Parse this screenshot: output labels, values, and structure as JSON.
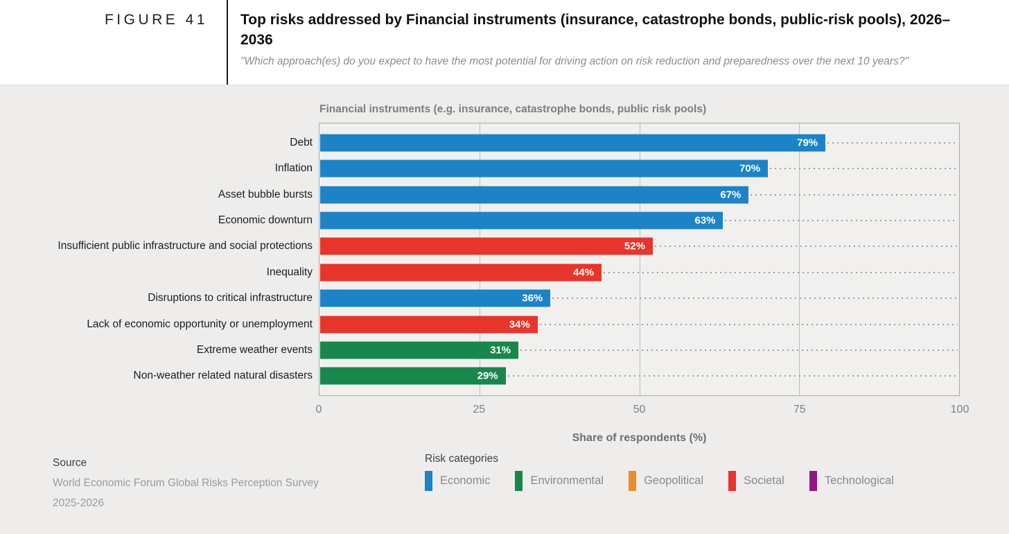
{
  "colors": {
    "Economic": "#1c83c6",
    "Environmental": "#17874b",
    "Geopolitical": "#e98d2e",
    "Societal": "#e8352c",
    "Technological": "#92187f"
  },
  "header": {
    "figure_label": "FIGURE 41",
    "title": "Top risks addressed by Financial instruments (insurance, catastrophe bonds, public-risk pools), 2026–2036",
    "subtitle": "\"Which approach(es) do you expect to have the most potential for driving action on risk reduction and preparedness over the next 10 years?\""
  },
  "chart_data": {
    "type": "bar",
    "orientation": "horizontal",
    "title": "Financial instruments (e.g. insurance, catastrophe bonds, public risk pools)",
    "xlabel": "Share of respondents (%)",
    "xlim": [
      0,
      100
    ],
    "x_ticks": [
      0,
      25,
      50,
      75,
      100
    ],
    "grid": "vertical solid gridlines at 25, 50, 75; dotted leader line from each bar end to right edge",
    "value_suffix": "%",
    "legend_position": "bottom",
    "bars": [
      {
        "label": "Debt",
        "value": 79,
        "category": "Economic"
      },
      {
        "label": "Inflation",
        "value": 70,
        "category": "Economic"
      },
      {
        "label": "Asset bubble bursts",
        "value": 67,
        "category": "Economic"
      },
      {
        "label": "Economic downturn",
        "value": 63,
        "category": "Economic"
      },
      {
        "label": "Insufficient public infrastructure and social protections",
        "value": 52,
        "category": "Societal"
      },
      {
        "label": "Inequality",
        "value": 44,
        "category": "Societal"
      },
      {
        "label": "Disruptions to critical infrastructure",
        "value": 36,
        "category": "Economic"
      },
      {
        "label": "Lack of economic opportunity or unemployment",
        "value": 34,
        "category": "Societal"
      },
      {
        "label": "Extreme weather events",
        "value": 31,
        "category": "Environmental"
      },
      {
        "label": "Non-weather related natural disasters",
        "value": 29,
        "category": "Environmental"
      }
    ]
  },
  "footer": {
    "source_label": "Source",
    "source_line1": "World Economic Forum Global Risks Perception Survey",
    "source_line2": "2025-2026",
    "legend_title": "Risk categories",
    "legend_items": [
      {
        "label": "Economic",
        "category": "Economic"
      },
      {
        "label": "Environmental",
        "category": "Environmental"
      },
      {
        "label": "Geopolitical",
        "category": "Geopolitical"
      },
      {
        "label": "Societal",
        "category": "Societal"
      },
      {
        "label": "Technological",
        "category": "Technological"
      }
    ]
  }
}
